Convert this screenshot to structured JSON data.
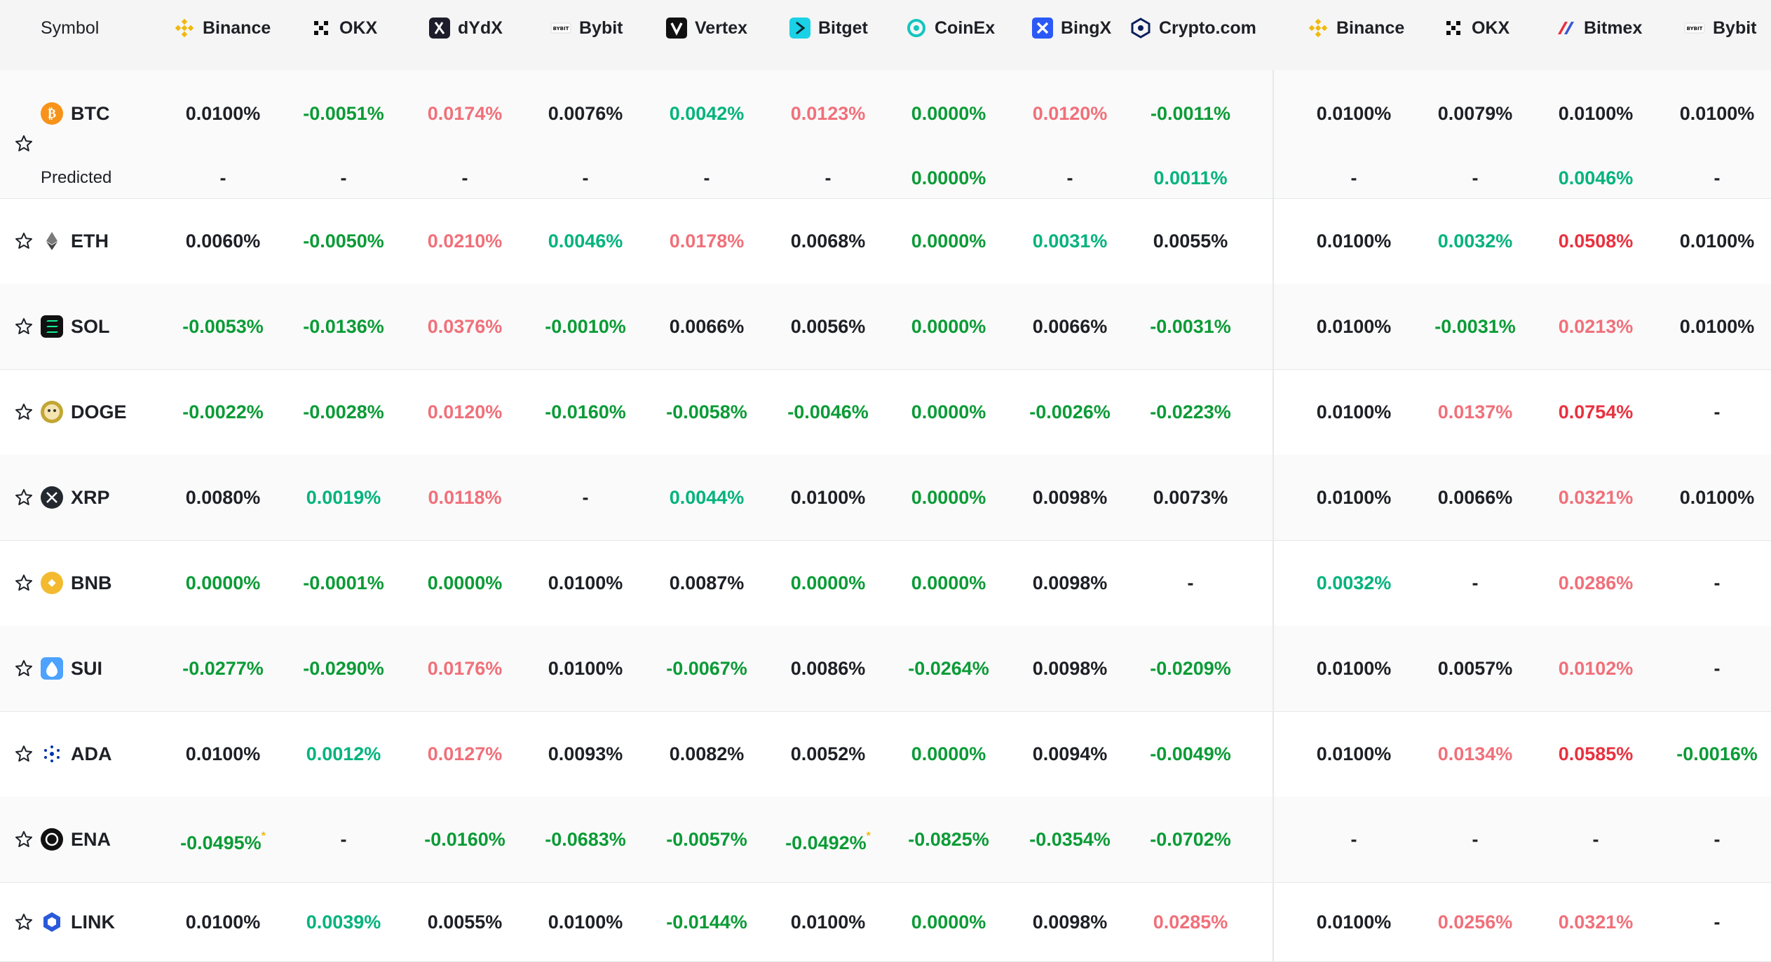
{
  "header": {
    "symbol_label": "Symbol",
    "exchanges": [
      {
        "name": "Binance",
        "icon": "binance-logo-icon"
      },
      {
        "name": "OKX",
        "icon": "okx-logo-icon"
      },
      {
        "name": "dYdX",
        "icon": "dydx-logo-icon"
      },
      {
        "name": "Bybit",
        "icon": "bybit-logo-icon"
      },
      {
        "name": "Vertex",
        "icon": "vertex-logo-icon"
      },
      {
        "name": "Bitget",
        "icon": "bitget-logo-icon"
      },
      {
        "name": "CoinEx",
        "icon": "coinex-logo-icon"
      },
      {
        "name": "BingX",
        "icon": "bingx-logo-icon"
      },
      {
        "name": "Crypto.com",
        "icon": "cryptocom-logo-icon"
      },
      {
        "name": "Binance",
        "icon": "binance-logo-icon"
      },
      {
        "name": "OKX",
        "icon": "okx-logo-icon"
      },
      {
        "name": "Bitmex",
        "icon": "bitmex-logo-icon"
      },
      {
        "name": "Bybit",
        "icon": "bybit-logo-icon"
      }
    ]
  },
  "colors": {
    "green": "#0b9b36",
    "teal": "#03b37d",
    "light_red": "#f0707a",
    "red": "#e8313f",
    "neutral": "#1e2026",
    "header_bg": "#f5f5f5",
    "border": "#e6e8ea"
  },
  "predicted_label": "Predicted",
  "rows": [
    {
      "symbol": "BTC",
      "icon": "btc-icon",
      "has_predicted": true,
      "values": [
        "0.0100%",
        "-0.0051%",
        "0.0174%",
        "0.0076%",
        "0.0042%",
        "0.0123%",
        "0.0000%",
        "0.0120%",
        "-0.0011%",
        "0.0100%",
        "0.0079%",
        "0.0100%",
        "0.0100%"
      ],
      "colors": [
        "n",
        "g",
        "lr",
        "n",
        "t",
        "lr",
        "g",
        "lr",
        "g",
        "n",
        "n",
        "n",
        "n"
      ],
      "predicted": [
        "-",
        "-",
        "-",
        "-",
        "-",
        "-",
        "0.0000%",
        "-",
        "0.0011%",
        "-",
        "-",
        "0.0046%",
        "-"
      ],
      "predicted_colors": [
        "n",
        "n",
        "n",
        "n",
        "n",
        "n",
        "g",
        "n",
        "t",
        "n",
        "n",
        "t",
        "n"
      ]
    },
    {
      "symbol": "ETH",
      "icon": "eth-icon",
      "values": [
        "0.0060%",
        "-0.0050%",
        "0.0210%",
        "0.0046%",
        "0.0178%",
        "0.0068%",
        "0.0000%",
        "0.0031%",
        "0.0055%",
        "0.0100%",
        "0.0032%",
        "0.0508%",
        "0.0100%"
      ],
      "colors": [
        "n",
        "g",
        "lr",
        "t",
        "lr",
        "n",
        "g",
        "t",
        "n",
        "n",
        "t",
        "r",
        "n"
      ]
    },
    {
      "symbol": "SOL",
      "icon": "sol-icon",
      "values": [
        "-0.0053%",
        "-0.0136%",
        "0.0376%",
        "-0.0010%",
        "0.0066%",
        "0.0056%",
        "0.0000%",
        "0.0066%",
        "-0.0031%",
        "0.0100%",
        "-0.0031%",
        "0.0213%",
        "0.0100%"
      ],
      "colors": [
        "g",
        "g",
        "lr",
        "g",
        "n",
        "n",
        "g",
        "n",
        "g",
        "n",
        "g",
        "lr",
        "n"
      ]
    },
    {
      "symbol": "DOGE",
      "icon": "doge-icon",
      "values": [
        "-0.0022%",
        "-0.0028%",
        "0.0120%",
        "-0.0160%",
        "-0.0058%",
        "-0.0046%",
        "0.0000%",
        "-0.0026%",
        "-0.0223%",
        "0.0100%",
        "0.0137%",
        "0.0754%",
        "-"
      ],
      "colors": [
        "g",
        "g",
        "lr",
        "g",
        "g",
        "g",
        "g",
        "g",
        "g",
        "n",
        "lr",
        "r",
        "n"
      ]
    },
    {
      "symbol": "XRP",
      "icon": "xrp-icon",
      "values": [
        "0.0080%",
        "0.0019%",
        "0.0118%",
        "-",
        "0.0044%",
        "0.0100%",
        "0.0000%",
        "0.0098%",
        "0.0073%",
        "0.0100%",
        "0.0066%",
        "0.0321%",
        "0.0100%"
      ],
      "colors": [
        "n",
        "t",
        "lr",
        "n",
        "t",
        "n",
        "g",
        "n",
        "n",
        "n",
        "n",
        "lr",
        "n"
      ]
    },
    {
      "symbol": "BNB",
      "icon": "bnb-icon",
      "values": [
        "0.0000%",
        "-0.0001%",
        "0.0000%",
        "0.0100%",
        "0.0087%",
        "0.0000%",
        "0.0000%",
        "0.0098%",
        "-",
        "0.0032%",
        "-",
        "0.0286%",
        "-"
      ],
      "colors": [
        "g",
        "g",
        "g",
        "n",
        "n",
        "g",
        "g",
        "n",
        "n",
        "t",
        "n",
        "lr",
        "n"
      ]
    },
    {
      "symbol": "SUI",
      "icon": "sui-icon",
      "values": [
        "-0.0277%",
        "-0.0290%",
        "0.0176%",
        "0.0100%",
        "-0.0067%",
        "0.0086%",
        "-0.0264%",
        "0.0098%",
        "-0.0209%",
        "0.0100%",
        "0.0057%",
        "0.0102%",
        "-"
      ],
      "colors": [
        "g",
        "g",
        "lr",
        "n",
        "g",
        "n",
        "g",
        "n",
        "g",
        "n",
        "n",
        "lr",
        "n"
      ]
    },
    {
      "symbol": "ADA",
      "icon": "ada-icon",
      "values": [
        "0.0100%",
        "0.0012%",
        "0.0127%",
        "0.0093%",
        "0.0082%",
        "0.0052%",
        "0.0000%",
        "0.0094%",
        "-0.0049%",
        "0.0100%",
        "0.0134%",
        "0.0585%",
        "-0.0016%"
      ],
      "colors": [
        "n",
        "t",
        "lr",
        "n",
        "n",
        "n",
        "g",
        "n",
        "g",
        "n",
        "lr",
        "r",
        "g"
      ]
    },
    {
      "symbol": "ENA",
      "icon": "ena-icon",
      "values": [
        "-0.0495%",
        "-",
        "-0.0160%",
        "-0.0683%",
        "-0.0057%",
        "-0.0492%",
        "-0.0825%",
        "-0.0354%",
        "-0.0702%",
        "-",
        "-",
        "-",
        "-"
      ],
      "colors": [
        "g",
        "n",
        "g",
        "g",
        "g",
        "g",
        "g",
        "g",
        "g",
        "n",
        "n",
        "n",
        "n"
      ],
      "asterisks": [
        0,
        5
      ],
      "asterisk": "*"
    },
    {
      "symbol": "LINK",
      "icon": "link-icon",
      "values": [
        "0.0100%",
        "0.0039%",
        "0.0055%",
        "0.0100%",
        "-0.0144%",
        "0.0100%",
        "0.0000%",
        "0.0098%",
        "0.0285%",
        "0.0100%",
        "0.0256%",
        "0.0321%",
        "-"
      ],
      "colors": [
        "n",
        "t",
        "n",
        "n",
        "g",
        "n",
        "g",
        "n",
        "lr",
        "n",
        "lr",
        "lr",
        "n"
      ]
    }
  ]
}
